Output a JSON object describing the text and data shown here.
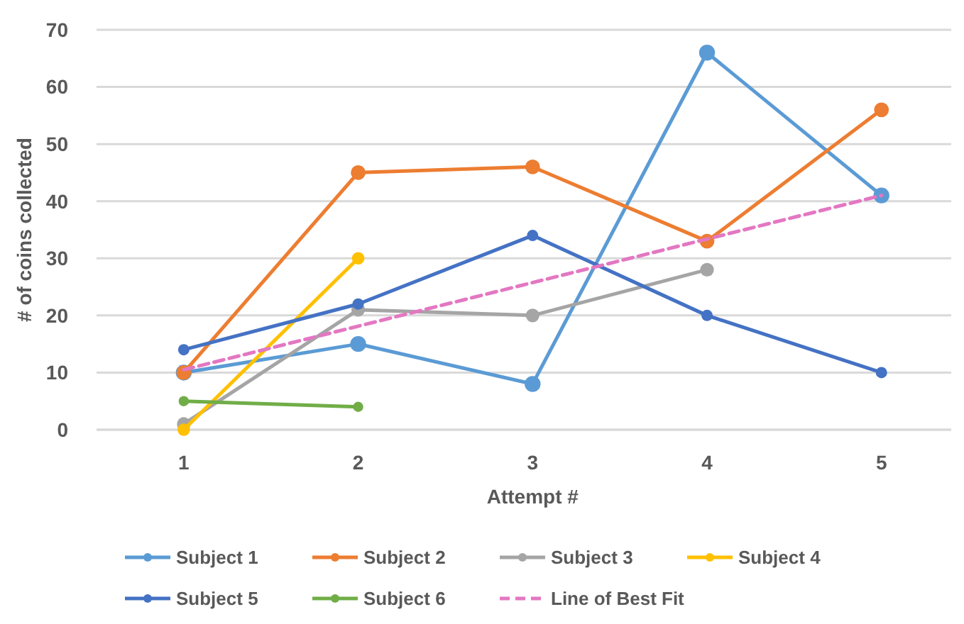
{
  "chart_data": {
    "type": "line",
    "xlabel": "Attempt #",
    "ylabel": "# of coins collected",
    "x": [
      1,
      2,
      3,
      4,
      5
    ],
    "xlim": [
      0.5,
      5.4
    ],
    "xticks": [
      1,
      2,
      3,
      4,
      5
    ],
    "ylim": [
      0,
      70
    ],
    "yticks": [
      0,
      10,
      20,
      30,
      40,
      50,
      60,
      70
    ],
    "grid": "y",
    "legend": "bottom",
    "marker": "circle",
    "series": [
      {
        "name": "Subject 1",
        "color": "#5b9bd5",
        "values": [
          10,
          15,
          8,
          66,
          41
        ]
      },
      {
        "name": "Subject 2",
        "color": "#ed7d31",
        "values": [
          10,
          45,
          46,
          33,
          56
        ]
      },
      {
        "name": "Subject 3",
        "color": "#a5a5a5",
        "values": [
          1,
          21,
          20,
          28,
          null
        ]
      },
      {
        "name": "Subject 4",
        "color": "#ffc000",
        "values": [
          0,
          30,
          null,
          null,
          null
        ]
      },
      {
        "name": "Subject 5",
        "color": "#4472c4",
        "values": [
          14,
          22,
          34,
          20,
          10
        ]
      },
      {
        "name": "Subject 6",
        "color": "#70ad47",
        "values": [
          5,
          4,
          null,
          null,
          null
        ]
      },
      {
        "name": "Line of Best Fit",
        "color": "#e377c2",
        "x": [
          1,
          5
        ],
        "values": [
          10.5,
          41
        ],
        "marker": "none",
        "line_style": "dashed"
      }
    ]
  }
}
